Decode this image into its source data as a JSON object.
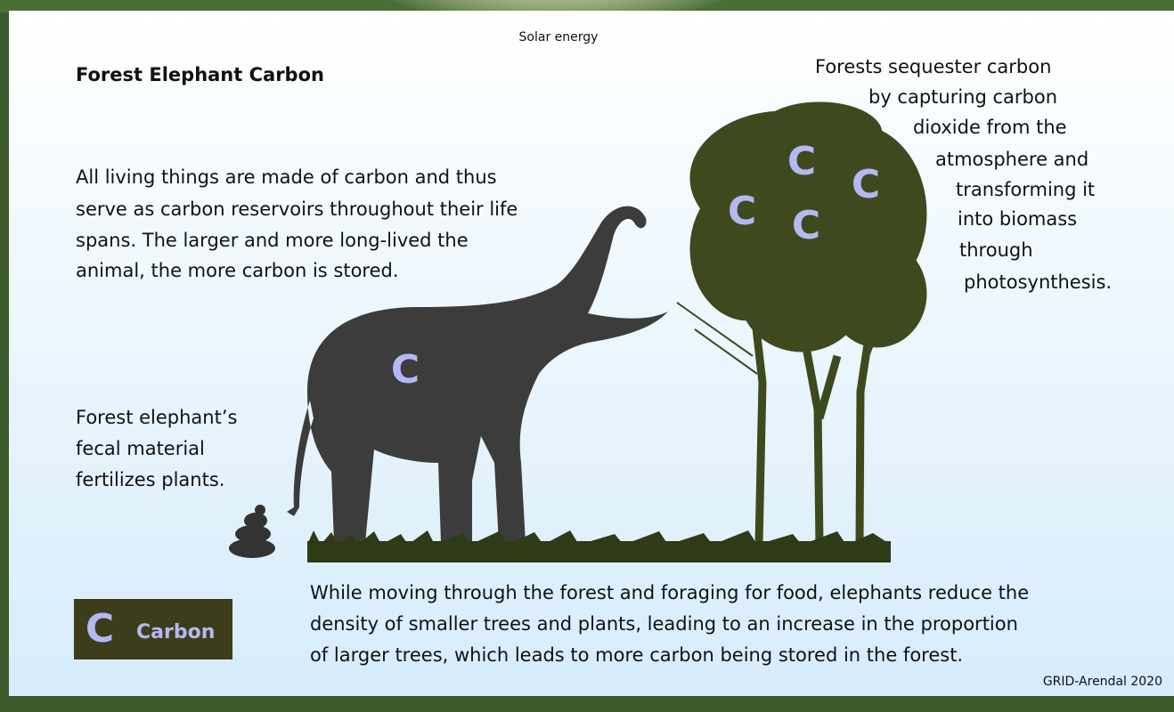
{
  "header": {
    "title": "Forest Elephant Carbon",
    "sun_label": "Solar energy"
  },
  "notes": {
    "forest": [
      "Forests sequester carbon",
      "by capturing carbon",
      "dioxide from the",
      "atmosphere and",
      "transforming it",
      "into biomass",
      "through",
      "photosynthesis."
    ],
    "living": [
      "All living things are made of carbon and thus",
      "serve as carbon reservoirs throughout their life",
      "spans. The larger and more long-lived the",
      "animal, the more carbon is stored."
    ],
    "fecal": [
      "Forest elephant’s",
      "fecal material",
      "fertilizes plants."
    ],
    "foraging": [
      "While moving through the forest and foraging for food, elephants reduce the",
      "density of smaller trees and plants, leading to an increase in the proportion",
      "of larger trees, which leads to more carbon being stored in the forest."
    ]
  },
  "carbon_marks": [
    "C",
    "C",
    "C",
    "C",
    "C",
    "C"
  ],
  "legend": {
    "symbol": "C",
    "label": "Carbon"
  },
  "credit": "GRID-Arendal 2020"
}
